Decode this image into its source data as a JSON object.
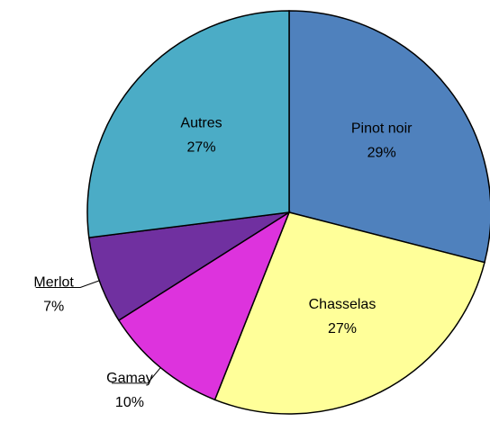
{
  "chart_data": {
    "type": "pie",
    "categories": [
      "Pinot noir",
      "Chasselas",
      "Gamay",
      "Merlot",
      "Autres"
    ],
    "values": [
      29,
      27,
      10,
      7,
      27
    ],
    "value_labels": [
      "29%",
      "27%",
      "10%",
      "7%",
      "27%"
    ],
    "colors": [
      "#4f81bd",
      "#ffff99",
      "#dd33dd",
      "#7030a0",
      "#4bacc6"
    ]
  }
}
